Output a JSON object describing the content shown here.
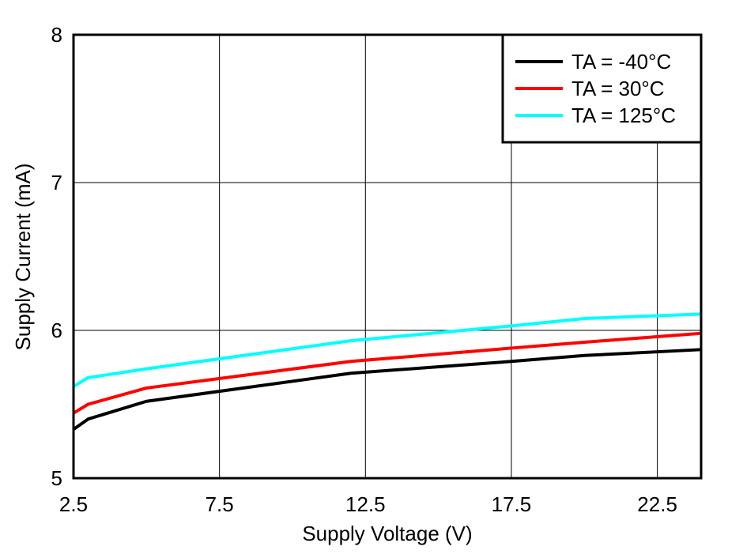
{
  "chart_data": {
    "type": "line",
    "title": "",
    "xlabel": "Supply Voltage (V)",
    "ylabel": "Supply Current (mA)",
    "xlim": [
      2.5,
      24
    ],
    "ylim": [
      5,
      8
    ],
    "xticks": [
      2.5,
      7.5,
      12.5,
      17.5,
      22.5
    ],
    "xtick_labels": [
      "2.5",
      "7.5",
      "12.5",
      "17.5",
      "22.5"
    ],
    "yticks": [
      5,
      6,
      7,
      8
    ],
    "ytick_labels": [
      "5",
      "6",
      "7",
      "8"
    ],
    "grid": true,
    "legend_position": "top-right",
    "series": [
      {
        "name": "TA = -40°C",
        "color": "#000000",
        "x": [
          2.5,
          3,
          5,
          12,
          17.5,
          20,
          24
        ],
        "y": [
          5.33,
          5.4,
          5.52,
          5.71,
          5.79,
          5.83,
          5.87
        ]
      },
      {
        "name": "TA = 30°C",
        "color": "#ff0000",
        "x": [
          2.5,
          3,
          5,
          12,
          17.5,
          20,
          24
        ],
        "y": [
          5.44,
          5.5,
          5.61,
          5.79,
          5.88,
          5.92,
          5.98
        ]
      },
      {
        "name": "TA = 125°C",
        "color": "#00ffff",
        "x": [
          2.5,
          3,
          5,
          12,
          17.5,
          20,
          24
        ],
        "y": [
          5.62,
          5.68,
          5.74,
          5.93,
          6.03,
          6.08,
          6.11
        ]
      }
    ]
  }
}
